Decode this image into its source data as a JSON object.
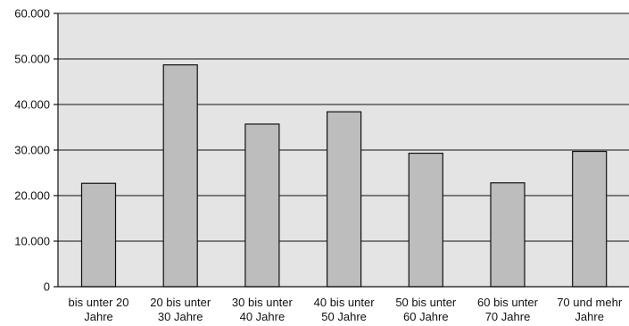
{
  "chart_data": {
    "type": "bar",
    "categories": [
      [
        "bis unter 20",
        "Jahre"
      ],
      [
        "20 bis unter",
        "30 Jahre"
      ],
      [
        "30 bis unter",
        "40 Jahre"
      ],
      [
        "40 bis unter",
        "50 Jahre"
      ],
      [
        "50 bis unter",
        "60 Jahre"
      ],
      [
        "60 bis unter",
        "70 Jahre"
      ],
      [
        "70 und mehr",
        "Jahre"
      ]
    ],
    "values": [
      22700,
      48700,
      35700,
      38400,
      29300,
      22800,
      29700
    ],
    "ylim": [
      0,
      60000
    ],
    "yticks": [
      0,
      10000,
      20000,
      30000,
      40000,
      50000,
      60000
    ],
    "ytick_labels": [
      "0",
      "10.000",
      "20.000",
      "30.000",
      "40.000",
      "50.000",
      "60.000"
    ],
    "grid": true,
    "colors": {
      "plot_background": "#e4e4e4",
      "bar_fill": "#bdbdbd",
      "bar_stroke": "#111111"
    }
  }
}
